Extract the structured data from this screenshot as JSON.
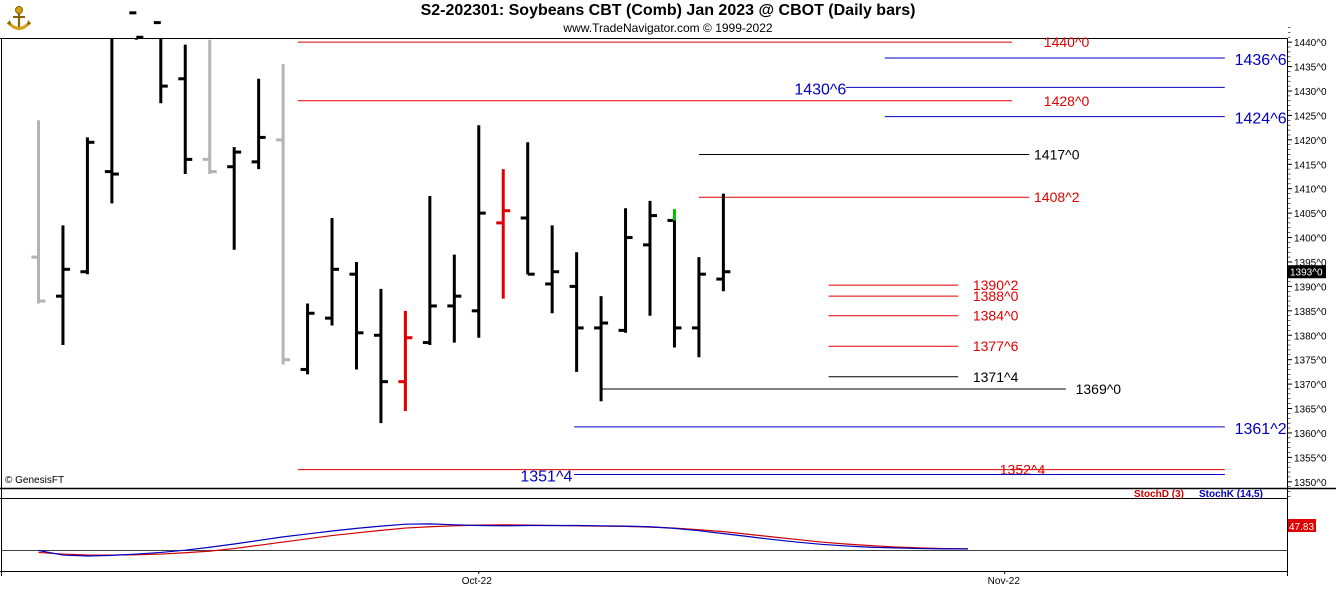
{
  "header": {
    "title": "S2-202301:  Soybeans CBT (Comb) Jan 2023 @ CBOT  (Daily bars)",
    "subtitle": "www.TradeNavigator.com © 1999-2022"
  },
  "footer": {
    "copyright": "© GenesisFT"
  },
  "colors": {
    "bar": "#000000",
    "bar_gray": "#b4b4b4",
    "bar_red": "#e00000",
    "bar_green": "#00c000",
    "level_red": "#e00000",
    "level_blue": "#0000c0",
    "level_black": "#000000",
    "stoch_d": "#d00000",
    "stoch_k": "#0000c0"
  },
  "chart_data": [
    {
      "type": "ohlc",
      "title": "S2-202301:  Soybeans CBT (Comb) Jan 2023 @ CBOT  (Daily bars)",
      "y_ticks": [
        "1350^0",
        "1355^0",
        "1360^0",
        "1365^0",
        "1370^0",
        "1375^0",
        "1380^0",
        "1385^0",
        "1390^0",
        "1395^0",
        "1400^0",
        "1405^0",
        "1410^0",
        "1415^0",
        "1420^0",
        "1425^0",
        "1430^0",
        "1435^0",
        "1440^0"
      ],
      "ylim": [
        1347,
        1443
      ],
      "x_labels": [
        {
          "label": "Oct-22",
          "bar": 18
        },
        {
          "label": "Nov-22",
          "bar": 39.5
        }
      ],
      "last_price": "1393^0",
      "grid": false,
      "bars": [
        {
          "o": 1396.0,
          "h": 1424.0,
          "l": 1386.5,
          "c": 1387.0,
          "color": "gray"
        },
        {
          "o": 1388.0,
          "h": 1402.5,
          "l": 1378.0,
          "c": 1393.5,
          "color": "black"
        },
        {
          "o": 1393.0,
          "h": 1420.5,
          "l": 1392.5,
          "c": 1419.5,
          "color": "black"
        },
        {
          "o": 1413.5,
          "h": 1450.0,
          "l": 1407.0,
          "c": 1413.0,
          "color": "black"
        },
        {
          "o": 1446.0,
          "h": 1446.0,
          "l": 1440.5,
          "c": 1441.0,
          "color": "black"
        },
        {
          "o": 1444.0,
          "h": 1452.0,
          "l": 1427.5,
          "c": 1431.0,
          "color": "black"
        },
        {
          "o": 1432.5,
          "h": 1439.5,
          "l": 1413.0,
          "c": 1416.0,
          "color": "black"
        },
        {
          "o": 1416.0,
          "h": 1440.5,
          "l": 1413.0,
          "c": 1413.5,
          "color": "gray"
        },
        {
          "o": 1414.5,
          "h": 1418.5,
          "l": 1397.5,
          "c": 1417.5,
          "color": "black"
        },
        {
          "o": 1415.5,
          "h": 1432.5,
          "l": 1414.0,
          "c": 1420.5,
          "color": "black"
        },
        {
          "o": 1420.0,
          "h": 1435.5,
          "l": 1374.0,
          "c": 1375.0,
          "color": "gray"
        },
        {
          "o": 1373.0,
          "h": 1386.5,
          "l": 1372.0,
          "c": 1384.5,
          "color": "black"
        },
        {
          "o": 1383.5,
          "h": 1404.0,
          "l": 1382.0,
          "c": 1393.5,
          "color": "black"
        },
        {
          "o": 1392.5,
          "h": 1395.0,
          "l": 1373.0,
          "c": 1380.5,
          "color": "black"
        },
        {
          "o": 1380.0,
          "h": 1389.5,
          "l": 1362.0,
          "c": 1370.5,
          "color": "black"
        },
        {
          "o": 1370.5,
          "h": 1385.0,
          "l": 1364.5,
          "c": 1379.5,
          "color": "red"
        },
        {
          "o": 1378.5,
          "h": 1408.5,
          "l": 1378.0,
          "c": 1386.0,
          "color": "black"
        },
        {
          "o": 1386.0,
          "h": 1396.5,
          "l": 1378.5,
          "c": 1388.0,
          "color": "black"
        },
        {
          "o": 1385.0,
          "h": 1423.0,
          "l": 1379.5,
          "c": 1405.0,
          "color": "black"
        },
        {
          "o": 1403.0,
          "h": 1414.0,
          "l": 1387.5,
          "c": 1405.5,
          "color": "red"
        },
        {
          "o": 1404.0,
          "h": 1419.5,
          "l": 1392.5,
          "c": 1392.5,
          "color": "black"
        },
        {
          "o": 1390.5,
          "h": 1402.5,
          "l": 1384.5,
          "c": 1393.0,
          "color": "black"
        },
        {
          "o": 1390.0,
          "h": 1397.0,
          "l": 1372.5,
          "c": 1381.5,
          "color": "black"
        },
        {
          "o": 1381.5,
          "h": 1388.0,
          "l": 1366.5,
          "c": 1382.5,
          "color": "black"
        },
        {
          "o": 1381.0,
          "h": 1406.0,
          "l": 1380.5,
          "c": 1400.0,
          "color": "black"
        },
        {
          "o": 1398.5,
          "h": 1407.5,
          "l": 1384.0,
          "c": 1404.5,
          "color": "black"
        },
        {
          "o": 1403.5,
          "h": 1404.0,
          "l": 1377.5,
          "c": 1381.5,
          "color": "black"
        },
        {
          "o": 1381.5,
          "h": 1396.0,
          "l": 1375.5,
          "c": 1392.5,
          "color": "black"
        },
        {
          "o": 1391.5,
          "h": 1409.0,
          "l": 1389.0,
          "c": 1393.0,
          "color": "black"
        }
      ],
      "green_marker": {
        "bar": 26,
        "from": 1403.5,
        "to": 1405.0
      },
      "levels": [
        {
          "label": "1440^0",
          "value": 1440.0,
          "color": "red",
          "from_bar": 10.6,
          "to_bar": 39.8,
          "label_bar": 41.1
        },
        {
          "label": "1436^6",
          "value": 1436.75,
          "color": "blue",
          "from_bar": 34.6,
          "to_bar": 48.5,
          "label_bar": 48.9,
          "big": true
        },
        {
          "label": "1430^6",
          "value": 1430.75,
          "color": "blue",
          "from_bar": 33.0,
          "to_bar": 48.5,
          "label_bar": 30.9,
          "big": true
        },
        {
          "label": "1428^0",
          "value": 1428.0,
          "color": "red",
          "from_bar": 10.6,
          "to_bar": 39.8,
          "label_bar": 41.1
        },
        {
          "label": "1424^6",
          "value": 1424.75,
          "color": "blue",
          "from_bar": 34.6,
          "to_bar": 48.5,
          "label_bar": 48.9,
          "big": true
        },
        {
          "label": "1417^0",
          "value": 1417.0,
          "color": "black",
          "from_bar": 27.0,
          "to_bar": 40.5,
          "label_bar": 40.7
        },
        {
          "label": "1408^2",
          "value": 1408.25,
          "color": "red",
          "from_bar": 27.0,
          "to_bar": 40.5,
          "label_bar": 40.7
        },
        {
          "label": "1390^2",
          "value": 1390.25,
          "color": "red",
          "from_bar": 32.3,
          "to_bar": 37.6,
          "label_bar": 38.2
        },
        {
          "label": "1388^0",
          "value": 1388.0,
          "color": "red",
          "from_bar": 32.3,
          "to_bar": 37.6,
          "label_bar": 38.2
        },
        {
          "label": "1384^0",
          "value": 1384.0,
          "color": "red",
          "from_bar": 32.3,
          "to_bar": 37.6,
          "label_bar": 38.2
        },
        {
          "label": "1377^6",
          "value": 1377.75,
          "color": "red",
          "from_bar": 32.3,
          "to_bar": 37.6,
          "label_bar": 38.2
        },
        {
          "label": "1371^4",
          "value": 1371.5,
          "color": "black",
          "from_bar": 32.3,
          "to_bar": 37.6,
          "label_bar": 38.2
        },
        {
          "label": "1369^0",
          "value": 1369.0,
          "color": "black",
          "from_bar": 23.0,
          "to_bar": 42.0,
          "label_bar": 42.4
        },
        {
          "label": "1361^2",
          "value": 1361.25,
          "color": "blue",
          "from_bar": 21.9,
          "to_bar": 48.5,
          "label_bar": 48.9,
          "big": true
        },
        {
          "label": "1352^4",
          "value": 1352.5,
          "color": "red",
          "from_bar": 10.6,
          "to_bar": 48.5,
          "label_bar": 39.3
        },
        {
          "label": "1351^4",
          "value": 1351.5,
          "color": "blue",
          "from_bar": 21.9,
          "to_bar": 48.5,
          "label_bar": 19.7,
          "big": true
        }
      ]
    },
    {
      "type": "line",
      "series": [
        {
          "name": "StochD (3)",
          "color": "#d00000",
          "x": [
            0,
            1,
            2,
            3,
            4,
            5,
            6,
            7,
            8,
            9,
            10,
            11,
            12,
            13,
            14,
            15,
            16,
            17,
            18,
            19,
            20,
            21,
            22,
            23,
            24,
            25,
            26,
            27,
            28,
            29,
            30,
            31,
            32,
            33,
            34,
            35,
            36,
            37,
            38
          ],
          "values": [
            27,
            24.5,
            23.2,
            23,
            23.5,
            24.5,
            26.5,
            29,
            33,
            38,
            43,
            48,
            53,
            57,
            61,
            64.5,
            66.5,
            68,
            69,
            69.5,
            69,
            68.5,
            68,
            67.5,
            67,
            66,
            64.5,
            62,
            59,
            55,
            51,
            47,
            43,
            40,
            37.5,
            35.5,
            34,
            33,
            32.5
          ]
        },
        {
          "name": "StochK (14,5)",
          "color": "#0000c0",
          "x": [
            0,
            1,
            2,
            3,
            4,
            5,
            6,
            7,
            8,
            9,
            10,
            11,
            12,
            13,
            14,
            15,
            16,
            17,
            18,
            19,
            20,
            21,
            22,
            23,
            24,
            25,
            26,
            27,
            28,
            29,
            30,
            31,
            32,
            33,
            34,
            35,
            36,
            37,
            38
          ],
          "values": [
            30,
            23,
            21.5,
            22.5,
            24.5,
            27,
            30.5,
            35,
            40,
            45.5,
            51,
            55.5,
            60,
            64,
            67.5,
            70.5,
            71,
            69.5,
            68.5,
            68,
            68.5,
            68.5,
            68.5,
            68,
            67.5,
            66.5,
            64,
            60.5,
            56,
            51.5,
            47,
            43,
            39.5,
            37,
            35,
            34,
            33,
            32.5,
            32.5
          ]
        }
      ],
      "last_value": "47.83",
      "legend": "top-right"
    }
  ]
}
